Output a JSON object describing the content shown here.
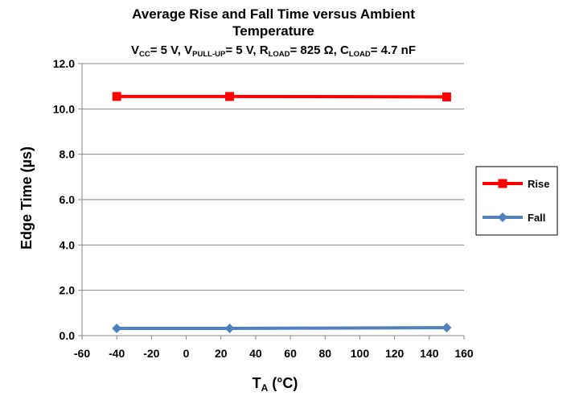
{
  "chart_data": {
    "type": "line",
    "title_line1": "Average Rise and Fall Time versus  Ambient",
    "title_line2": "Temperature",
    "conditions": {
      "vcc_main": "V",
      "vcc_sub": "CC",
      "vcc_val": "= 5 V, ",
      "vpu_main": "V",
      "vpu_sub": "PULL-UP",
      "vpu_val": "= 5 V, ",
      "rload_main": "R",
      "rload_sub": "LOAD",
      "rload_val": "= 825 Ω, ",
      "cload_main": "C",
      "cload_sub": "LOAD",
      "cload_val": "= 4.7 nF"
    },
    "xlabel_main": "T",
    "xlabel_sub": "A",
    "xlabel_unit": " (°C)",
    "ylabel": "Edge Time (µs)",
    "xlim": [
      -60,
      160
    ],
    "ylim": [
      0,
      12
    ],
    "x_ticks": [
      -60,
      -40,
      -20,
      0,
      20,
      40,
      60,
      80,
      100,
      120,
      140,
      160
    ],
    "y_ticks": [
      "0.0",
      "2.0",
      "4.0",
      "6.0",
      "8.0",
      "10.0",
      "12.0"
    ],
    "grid": "horizontal",
    "legend_position": "right",
    "series": [
      {
        "name": "Rise",
        "color": "#ff0000",
        "marker": "square",
        "points": [
          {
            "x": -40,
            "y": 10.55
          },
          {
            "x": 25,
            "y": 10.55
          },
          {
            "x": 150,
            "y": 10.53
          }
        ]
      },
      {
        "name": "Fall",
        "color": "#4f81bd",
        "marker": "diamond",
        "points": [
          {
            "x": -40,
            "y": 0.32
          },
          {
            "x": 25,
            "y": 0.32
          },
          {
            "x": 150,
            "y": 0.35
          }
        ]
      }
    ]
  }
}
